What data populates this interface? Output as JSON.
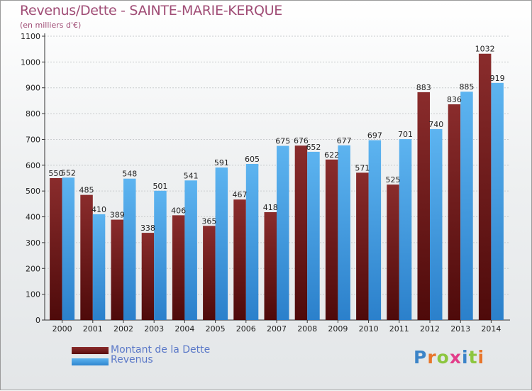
{
  "title": "Revenus/Dette - SAINTE-MARIE-KERQUE",
  "subtitle": "(en milliers d'€)",
  "legend": {
    "debt_label": "Montant de la Dette",
    "revenue_label": "Revenus"
  },
  "logo": {
    "text": "Proxiti",
    "letter_colors": [
      "#3b84c8",
      "#e8752a",
      "#8cc63f",
      "#e23e8a",
      "#3b84c8",
      "#8cc63f",
      "#e8752a"
    ]
  },
  "colors": {
    "debt_top": "#8a2c2c",
    "debt_bottom": "#4e0a0a",
    "revenue_top": "#5db4f0",
    "revenue_bottom": "#2b80cb"
  },
  "chart_data": {
    "type": "bar",
    "title": "Revenus/Dette - SAINTE-MARIE-KERQUE",
    "xlabel": "",
    "ylabel": "(en milliers d'€)",
    "ylim": [
      0,
      1100
    ],
    "yticks": [
      0,
      100,
      200,
      300,
      400,
      500,
      600,
      700,
      800,
      900,
      1000,
      1100
    ],
    "categories": [
      "2000",
      "2001",
      "2002",
      "2003",
      "2004",
      "2005",
      "2006",
      "2007",
      "2008",
      "2009",
      "2010",
      "2011",
      "2012",
      "2013",
      "2014"
    ],
    "series": [
      {
        "name": "Montant de la Dette",
        "values": [
          550,
          485,
          389,
          338,
          406,
          365,
          467,
          418,
          676,
          622,
          571,
          525,
          883,
          836,
          1032
        ]
      },
      {
        "name": "Revenus",
        "values": [
          552,
          410,
          548,
          501,
          541,
          591,
          605,
          675,
          652,
          677,
          697,
          701,
          740,
          885,
          919
        ]
      }
    ],
    "legend_position": "bottom-left",
    "grid": true
  }
}
